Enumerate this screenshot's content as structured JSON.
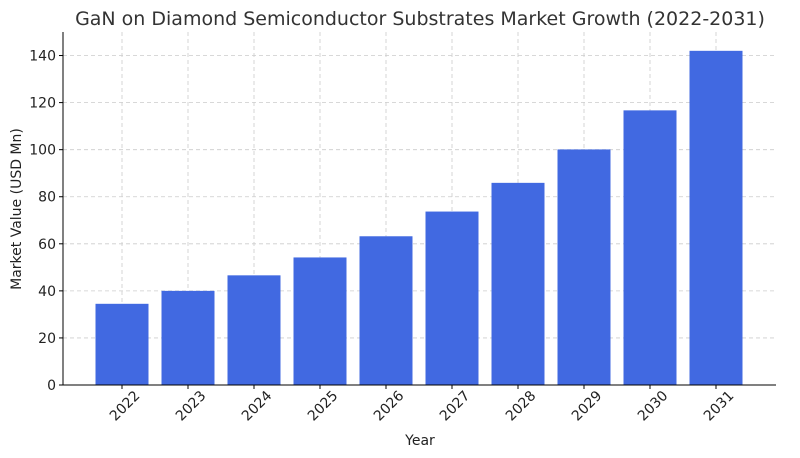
{
  "chart_data": {
    "type": "bar",
    "title": "GaN on Diamond Semiconductor Substrates Market Growth (2022-2031)",
    "xlabel": "Year",
    "ylabel": "Market Value (USD Mn)",
    "categories": [
      "2022",
      "2023",
      "2024",
      "2025",
      "2026",
      "2027",
      "2028",
      "2029",
      "2030",
      "2031"
    ],
    "values": [
      34.5,
      40.0,
      46.6,
      54.2,
      63.2,
      73.7,
      85.9,
      100.1,
      116.7,
      142.0
    ],
    "ylim": [
      0,
      150
    ],
    "yticks": [
      0,
      20,
      40,
      60,
      80,
      100,
      120,
      140
    ],
    "grid": true,
    "bar_color": "#4169e1",
    "xtick_rotation": 45
  }
}
